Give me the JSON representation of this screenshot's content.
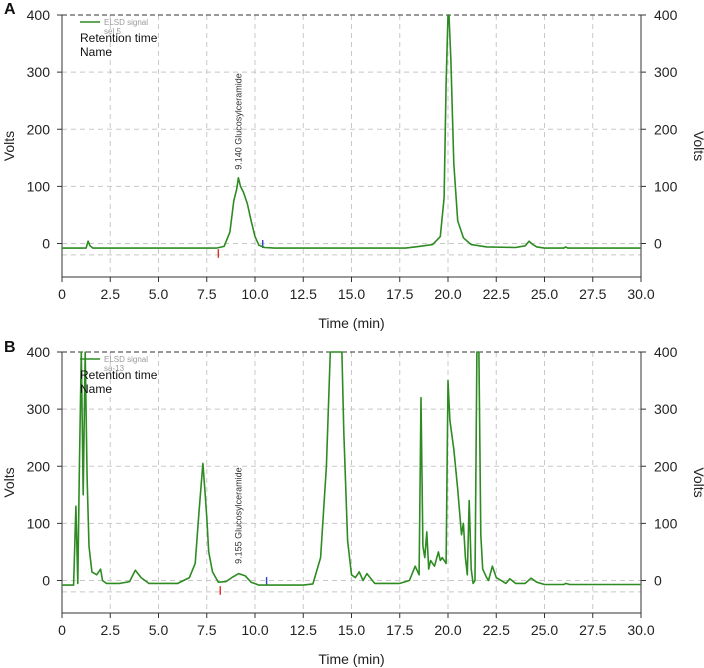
{
  "figure": {
    "line_color": "#2e8b22",
    "grid_color": "#c8c8c8",
    "axis_color": "#333333",
    "start_marker_color": "#e0301e",
    "end_marker_color": "#2a3fd6"
  },
  "chart_data": [
    {
      "panel_label": "A",
      "type": "line",
      "xlabel": "Time (min)",
      "ylabel_left": "Volts",
      "ylabel_right": "Volts",
      "xlim": [
        0,
        30
      ],
      "ylim": [
        -60,
        400
      ],
      "x_ticks": [
        "0",
        "2.5",
        "5.0",
        "7.5",
        "10.0",
        "12.5",
        "15.0",
        "17.5",
        "20.0",
        "22.5",
        "25.0",
        "27.5",
        "30.0"
      ],
      "y_ticks": [
        "0",
        "100",
        "200",
        "300",
        "400"
      ],
      "grid": true,
      "legend": {
        "position": "top-left",
        "series_name": "ELSD signal",
        "series_sub": "sel 5",
        "extra_lines": [
          "Retention time",
          "Name"
        ]
      },
      "annotation": {
        "text": "9.140  Glucosylceramide",
        "x": 9.14,
        "y": 115
      },
      "integration_markers": {
        "start": 8.1,
        "end": 10.4
      },
      "series": [
        {
          "x": [
            0,
            1.25,
            1.35,
            1.45,
            1.6,
            8.0,
            8.4,
            8.7,
            8.9,
            9.05,
            9.14,
            9.25,
            9.4,
            9.6,
            9.8,
            10.0,
            10.2,
            10.5,
            11.0,
            17.8,
            18.5,
            19.2,
            19.6,
            19.8,
            19.9,
            20.0,
            20.05,
            20.15,
            20.3,
            20.5,
            20.8,
            21.2,
            22.0,
            23.5,
            24.0,
            24.2,
            24.4,
            24.6,
            25.0,
            26.0,
            26.1,
            26.2,
            30.0
          ],
          "y": [
            -8,
            -8,
            4,
            -4,
            -8,
            -8,
            -5,
            20,
            75,
            95,
            115,
            100,
            90,
            70,
            40,
            12,
            -3,
            -7,
            -8,
            -8,
            -5,
            -2,
            12,
            80,
            280,
            400,
            400,
            320,
            140,
            40,
            10,
            -2,
            -6,
            -7,
            -4,
            4,
            -2,
            -6,
            -8,
            -8,
            -6,
            -8,
            -8
          ]
        }
      ]
    },
    {
      "panel_label": "B",
      "type": "line",
      "xlabel": "Time (min)",
      "ylabel_left": "Volts",
      "ylabel_right": "Volts",
      "xlim": [
        0,
        30
      ],
      "ylim": [
        -60,
        400
      ],
      "x_ticks": [
        "0",
        "2.5",
        "5.0",
        "7.5",
        "10.0",
        "12.5",
        "15.0",
        "17.5",
        "20.0",
        "22.5",
        "25.0",
        "27.5",
        "30.0"
      ],
      "y_ticks": [
        "0",
        "100",
        "200",
        "300",
        "400"
      ],
      "grid": true,
      "legend": {
        "position": "top-left",
        "series_name": "ELSD signal",
        "series_sub": "sa-13",
        "extra_lines": [
          "Retention time",
          "Name"
        ]
      },
      "annotation": {
        "text": "9.155  Glucosylceramide",
        "x": 9.155,
        "y": 15
      },
      "integration_markers": {
        "start": 8.2,
        "end": 10.6
      },
      "series": [
        {
          "x": [
            0,
            0.6,
            0.72,
            0.82,
            0.9,
            1.0,
            1.1,
            1.2,
            1.3,
            1.4,
            1.55,
            1.8,
            2.0,
            2.1,
            2.3,
            3.0,
            3.5,
            3.8,
            4.1,
            4.5,
            6.0,
            6.6,
            6.9,
            7.1,
            7.3,
            7.4,
            7.5,
            7.6,
            7.8,
            8.1,
            8.5,
            8.8,
            9.155,
            9.5,
            9.8,
            10.2,
            12.5,
            13.0,
            13.4,
            13.7,
            13.9,
            14.0,
            14.5,
            14.6,
            14.8,
            15.0,
            15.2,
            15.4,
            15.6,
            15.8,
            16.2,
            17.5,
            18.0,
            18.3,
            18.5,
            18.6,
            18.7,
            18.8,
            18.9,
            19.0,
            19.1,
            19.3,
            19.5,
            19.6,
            19.7,
            19.9,
            20.0,
            20.1,
            20.3,
            20.5,
            20.7,
            20.8,
            20.9,
            21.0,
            21.1,
            21.2,
            21.3,
            21.4,
            21.5,
            21.6,
            21.7,
            21.8,
            22.0,
            22.1,
            22.3,
            22.5,
            23.0,
            23.2,
            23.5,
            24.0,
            24.3,
            24.6,
            25.0,
            26.0,
            26.1,
            26.3,
            30.0
          ],
          "y": [
            -8,
            -8,
            130,
            -5,
            200,
            400,
            150,
            400,
            180,
            60,
            15,
            10,
            20,
            0,
            -5,
            -5,
            -2,
            18,
            5,
            -5,
            -5,
            5,
            30,
            120,
            205,
            160,
            110,
            50,
            15,
            -3,
            -2,
            5,
            12,
            8,
            -3,
            -8,
            -8,
            -6,
            40,
            200,
            400,
            400,
            400,
            260,
            70,
            10,
            5,
            15,
            0,
            12,
            -5,
            -5,
            0,
            25,
            10,
            320,
            60,
            40,
            85,
            20,
            35,
            25,
            50,
            35,
            40,
            30,
            350,
            280,
            230,
            160,
            80,
            100,
            40,
            10,
            140,
            20,
            -5,
            0,
            400,
            400,
            80,
            20,
            5,
            0,
            25,
            5,
            -5,
            3,
            -5,
            -5,
            4,
            -3,
            -7,
            -7,
            -5,
            -7,
            -7
          ]
        }
      ]
    }
  ]
}
